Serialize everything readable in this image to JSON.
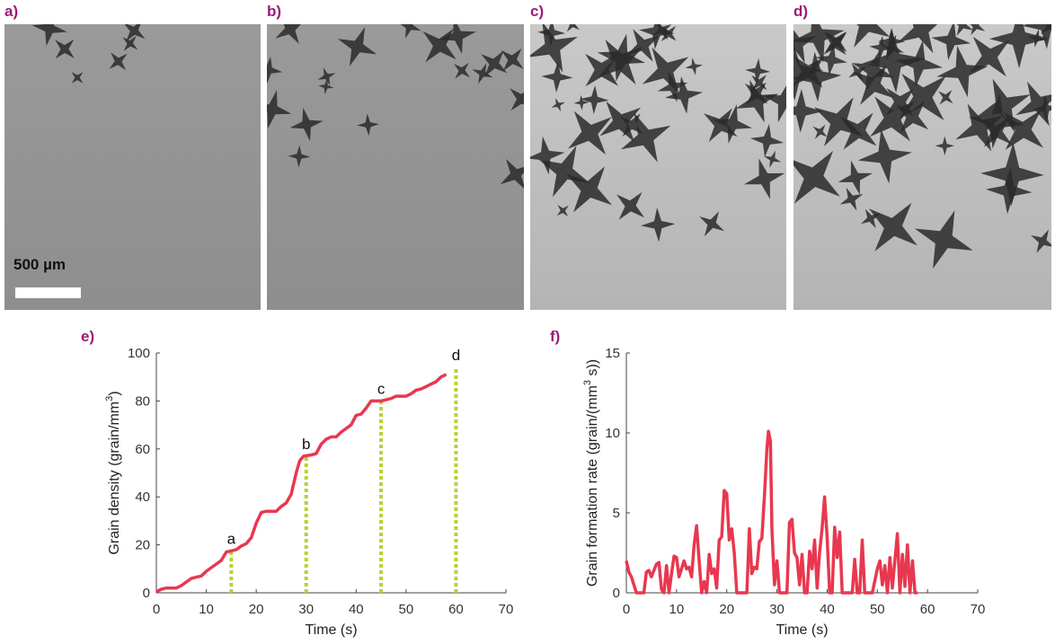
{
  "panels": [
    {
      "label": "a)",
      "density": 0.1
    },
    {
      "label": "b)",
      "density": 0.3
    },
    {
      "label": "c)",
      "density": 0.65
    },
    {
      "label": "d)",
      "density": 0.9
    }
  ],
  "scale_bar": {
    "text": "500 µm"
  },
  "chart_labels": {
    "e": "e)",
    "f": "f)"
  },
  "colors": {
    "line": "#e8384f",
    "marker_line": "#b5d334",
    "panel_label": "#9c1a78",
    "axis": "#444444"
  },
  "chart_data": [
    {
      "type": "line",
      "xlabel": "Time (s)",
      "ylabel": "Grain density (grain/mm",
      "ylabel_sup": "3",
      "ylabel_tail": ")",
      "xlim": [
        0,
        70
      ],
      "ylim": [
        0,
        100
      ],
      "xticks": [
        0,
        10,
        20,
        30,
        40,
        50,
        60,
        70
      ],
      "yticks": [
        0,
        20,
        40,
        60,
        80,
        100
      ],
      "grid": false,
      "x": [
        0,
        1,
        2,
        4,
        5,
        6,
        7,
        8,
        9,
        10,
        11,
        12,
        13,
        14,
        15,
        16,
        17,
        18,
        19,
        20,
        21,
        22,
        24,
        25,
        26,
        27,
        28,
        28.7,
        29.5,
        31,
        32,
        33,
        34,
        35,
        36,
        37,
        38,
        39,
        40,
        41,
        42,
        43,
        45,
        46,
        47,
        48,
        50,
        51,
        52,
        53,
        54,
        55,
        56,
        57,
        58
      ],
      "y": [
        0.5,
        1.5,
        2,
        2,
        3,
        4.5,
        6,
        6.5,
        7,
        9,
        10.5,
        12,
        13.5,
        17,
        17.5,
        18,
        19.5,
        20.5,
        23,
        29,
        33.5,
        34,
        34,
        36,
        37.5,
        41,
        50,
        55,
        57,
        57.5,
        58,
        62,
        64,
        65,
        65,
        67,
        68.5,
        70,
        74,
        74.5,
        77,
        80,
        80,
        80.5,
        81,
        82,
        82,
        83,
        84.5,
        85,
        86,
        87,
        88,
        90,
        91
      ],
      "markers": [
        {
          "label": "a",
          "x": 15,
          "y_top": 17.5
        },
        {
          "label": "b",
          "x": 30,
          "y_top": 57
        },
        {
          "label": "c",
          "x": 45,
          "y_top": 80
        },
        {
          "label": "d",
          "x": 60,
          "y_top": 94
        }
      ]
    },
    {
      "type": "line",
      "xlabel": "Time (s)",
      "ylabel": "Grain formation rate (grain/(mm",
      "ylabel_sup": "3",
      "ylabel_tail": " s))",
      "xlim": [
        0,
        70
      ],
      "ylim": [
        0,
        15
      ],
      "xticks": [
        0,
        10,
        20,
        30,
        40,
        50,
        60,
        70
      ],
      "yticks": [
        0,
        5,
        10,
        15
      ],
      "grid": false,
      "x": [
        0,
        0.5,
        1,
        1.5,
        2,
        3,
        3.5,
        4,
        4.5,
        5,
        5.5,
        6,
        6.5,
        7,
        7.5,
        8,
        8.5,
        9,
        9.5,
        10,
        10.5,
        11,
        11.5,
        12,
        12.5,
        13,
        13.5,
        14,
        14.5,
        15,
        15.5,
        16,
        16.5,
        17,
        17.5,
        18,
        18.5,
        19,
        19.5,
        20,
        20.5,
        21,
        21.5,
        22,
        23,
        24,
        24.5,
        25,
        25.5,
        26,
        26.5,
        27,
        27.5,
        28,
        28.3,
        28.7,
        29,
        29.5,
        30,
        30.5,
        31,
        32,
        32.5,
        33,
        33.5,
        34,
        34.5,
        35,
        35.5,
        36,
        36.5,
        37,
        37.5,
        38,
        38.5,
        39,
        39.5,
        40,
        40.5,
        41,
        41.5,
        42,
        42.5,
        43,
        44,
        45,
        45.5,
        46,
        46.5,
        47,
        47.5,
        48,
        49,
        50,
        50.5,
        51,
        51.5,
        52,
        52.5,
        53,
        53.5,
        54,
        54.5,
        55,
        55.5,
        56,
        56.5,
        57,
        57.5,
        58
      ],
      "y": [
        2,
        1.3,
        1,
        0.5,
        0,
        0,
        0,
        1.3,
        1.4,
        1,
        1.4,
        1.8,
        1.9,
        0.2,
        0,
        1.7,
        0,
        1.2,
        2.3,
        2.2,
        1,
        1.5,
        2,
        1.5,
        1.6,
        1,
        3,
        4.2,
        2,
        0,
        0.7,
        0,
        2.4,
        1.2,
        1.5,
        0.3,
        3.3,
        3.5,
        6.4,
        6.2,
        3.3,
        4,
        2.5,
        0,
        0,
        0,
        4,
        1.2,
        1.6,
        1.5,
        3.2,
        3.4,
        6,
        9,
        10.1,
        9.5,
        4,
        0.5,
        2,
        0,
        0,
        0,
        4.4,
        4.6,
        2.5,
        2.2,
        0.5,
        2.4,
        0,
        0,
        2.6,
        1.5,
        3.3,
        0.3,
        2.5,
        4,
        6,
        3.5,
        0,
        0,
        4.1,
        2.2,
        3.8,
        0,
        0,
        0,
        2.1,
        0,
        0,
        3.3,
        0,
        0,
        0,
        1.5,
        2,
        0.5,
        1.7,
        0,
        2.2,
        0.3,
        2,
        3.7,
        0,
        2.4,
        0.4,
        3,
        0,
        2,
        0,
        0
      ]
    }
  ]
}
